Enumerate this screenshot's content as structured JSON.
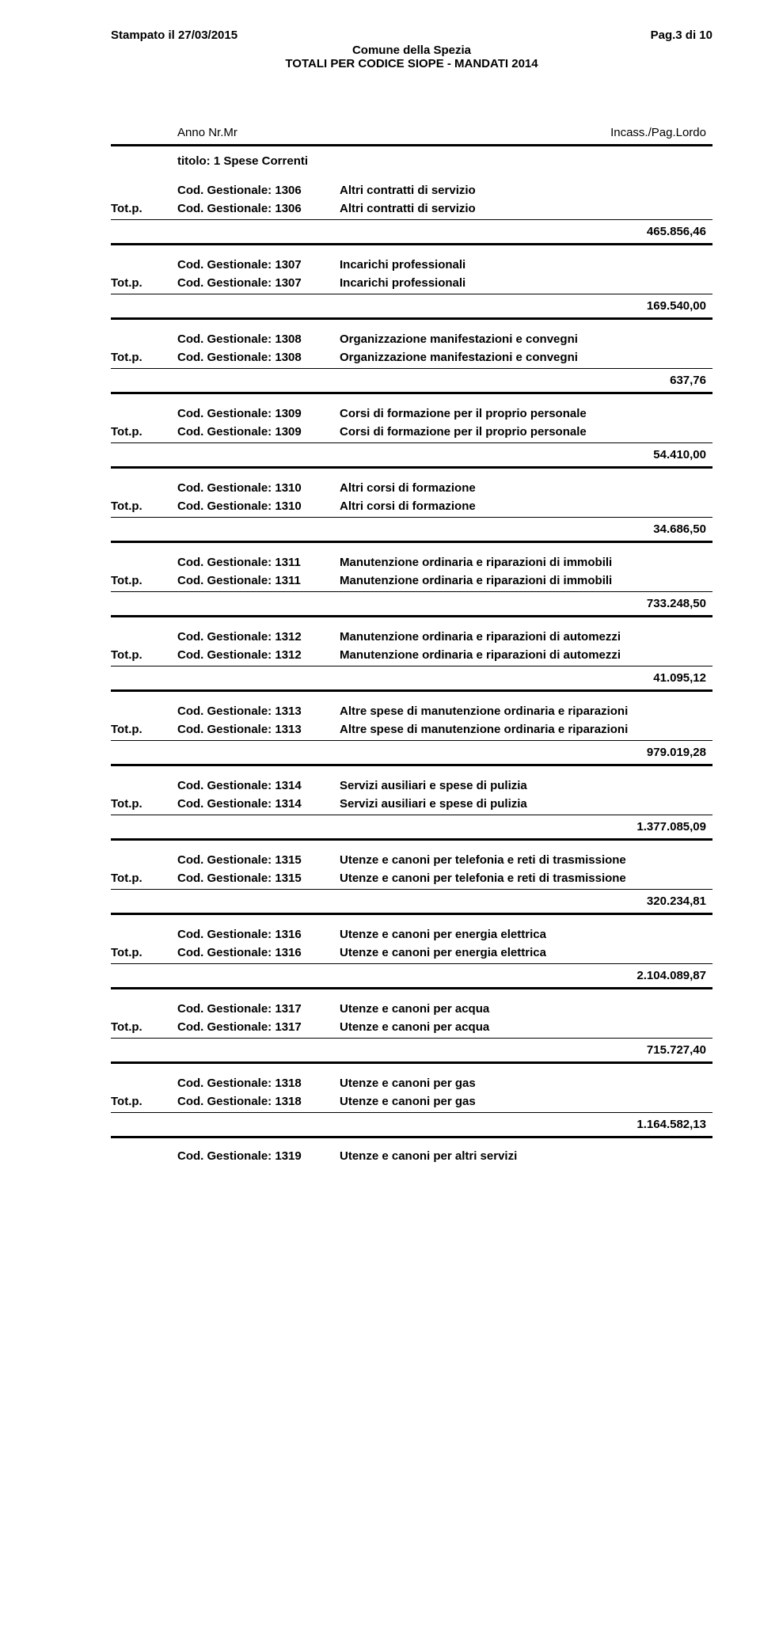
{
  "header": {
    "left": "Stampato il 27/03/2015",
    "right": "Pag.3 di 10",
    "center": "Comune della Spezia",
    "sub": "TOTALI PER CODICE SIOPE - MANDATI 2014"
  },
  "columns": {
    "left": "Anno   Nr.Mr",
    "right": "Incass./Pag.Lordo"
  },
  "section": "titolo: 1 Spese Correnti",
  "totp_label": "Tot.p.",
  "entries": [
    {
      "code": "Cod. Gestionale: 1306",
      "desc": "Altri contratti di servizio",
      "amount": "465.856,46"
    },
    {
      "code": "Cod. Gestionale: 1307",
      "desc": "Incarichi professionali",
      "amount": "169.540,00"
    },
    {
      "code": "Cod. Gestionale: 1308",
      "desc": "Organizzazione manifestazioni e convegni",
      "amount": "637,76"
    },
    {
      "code": "Cod. Gestionale: 1309",
      "desc": "Corsi di formazione per il proprio personale",
      "amount": "54.410,00"
    },
    {
      "code": "Cod. Gestionale: 1310",
      "desc": "Altri corsi di formazione",
      "amount": "34.686,50"
    },
    {
      "code": "Cod. Gestionale: 1311",
      "desc": "Manutenzione ordinaria e riparazioni di immobili",
      "amount": "733.248,50"
    },
    {
      "code": "Cod. Gestionale: 1312",
      "desc": "Manutenzione ordinaria e riparazioni di automezzi",
      "amount": "41.095,12"
    },
    {
      "code": "Cod. Gestionale: 1313",
      "desc": "Altre spese di manutenzione ordinaria e riparazioni",
      "amount": "979.019,28"
    },
    {
      "code": "Cod. Gestionale: 1314",
      "desc": "Servizi ausiliari e spese di pulizia",
      "amount": "1.377.085,09"
    },
    {
      "code": "Cod. Gestionale: 1315",
      "desc": "Utenze e canoni per telefonia e reti di trasmissione",
      "amount": "320.234,81"
    },
    {
      "code": "Cod. Gestionale: 1316",
      "desc": "Utenze e canoni per energia elettrica",
      "amount": "2.104.089,87"
    },
    {
      "code": "Cod. Gestionale: 1317",
      "desc": "Utenze e canoni per acqua",
      "amount": "715.727,40"
    },
    {
      "code": "Cod. Gestionale: 1318",
      "desc": "Utenze e canoni per gas",
      "amount": "1.164.582,13"
    }
  ],
  "trailing": {
    "code": "Cod. Gestionale: 1319",
    "desc": "Utenze e canoni per altri servizi"
  }
}
